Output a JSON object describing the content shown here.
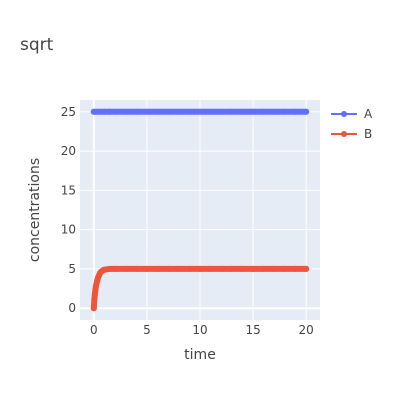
{
  "chart_data": {
    "type": "line",
    "title": "sqrt",
    "xlabel": "time",
    "ylabel": "concentrations",
    "xlim": [
      -1.3,
      21.3
    ],
    "ylim": [
      -1.5,
      26.5
    ],
    "x_ticks": [
      0,
      5,
      10,
      15,
      20
    ],
    "y_ticks": [
      0,
      5,
      10,
      15,
      20,
      25
    ],
    "grid": true,
    "legend_position": "top-right",
    "series": [
      {
        "name": "A",
        "color": "#636efa",
        "x": [
          0,
          0.5,
          1,
          1.5,
          2,
          3,
          4,
          5,
          6,
          7,
          8,
          9,
          10,
          11,
          12,
          13,
          14,
          15,
          16,
          17,
          18,
          19,
          20
        ],
        "values": [
          25,
          25,
          25,
          25,
          25,
          25,
          25,
          25,
          25,
          25,
          25,
          25,
          25,
          25,
          25,
          25,
          25,
          25,
          25,
          25,
          25,
          25,
          25
        ]
      },
      {
        "name": "B",
        "color": "#ef553b",
        "x": [
          0,
          0.05,
          0.1,
          0.15,
          0.2,
          0.3,
          0.4,
          0.5,
          0.6,
          0.7,
          0.8,
          0.9,
          1.0,
          1.2,
          1.5,
          2,
          3,
          4,
          5,
          6,
          7,
          8,
          9,
          10,
          11,
          12,
          13,
          14,
          15,
          16,
          17,
          18,
          19,
          20
        ],
        "values": [
          0,
          1.1,
          1.8,
          2.3,
          2.8,
          3.4,
          3.9,
          4.2,
          4.5,
          4.65,
          4.75,
          4.85,
          4.9,
          4.95,
          5,
          5,
          5,
          5,
          5,
          5,
          5,
          5,
          5,
          5,
          5,
          5,
          5,
          5,
          5,
          5,
          5,
          5,
          5,
          5
        ]
      }
    ]
  }
}
